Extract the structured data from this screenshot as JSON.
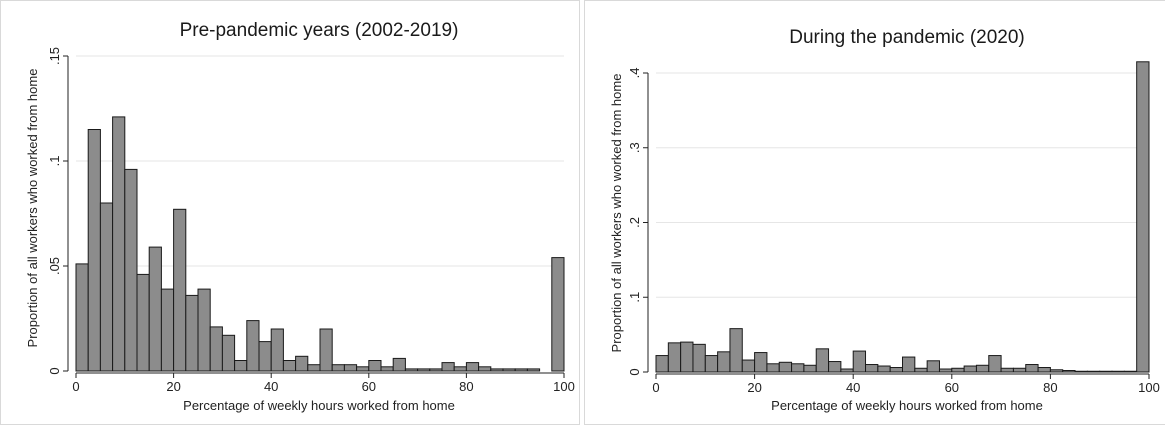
{
  "chart_data": [
    {
      "type": "bar",
      "title": "Pre-pandemic years (2002-2019)",
      "xlabel": "Percentage of weekly hours worked from home",
      "ylabel": "Proportion of all workers who worked from home",
      "xlim": [
        0,
        100
      ],
      "ylim": [
        0,
        0.15
      ],
      "xticks": [
        0,
        20,
        40,
        60,
        80,
        100
      ],
      "xtick_labels": [
        "0",
        "20",
        "40",
        "60",
        "80",
        "100"
      ],
      "yticks": [
        0,
        0.05,
        0.1,
        0.15
      ],
      "ytick_labels": [
        "0",
        ".05",
        ".1",
        ".15"
      ],
      "grid": true,
      "bin_width": 2.5,
      "bar_color": "#8c8c8c",
      "x": [
        2.5,
        5,
        7.5,
        10,
        12.5,
        15,
        17.5,
        20,
        22.5,
        25,
        27.5,
        30,
        32.5,
        35,
        37.5,
        40,
        42.5,
        45,
        47.5,
        50,
        52.5,
        55,
        57.5,
        60,
        62.5,
        65,
        67.5,
        70,
        72.5,
        75,
        77.5,
        80,
        82.5,
        85,
        87.5,
        90,
        92.5,
        95,
        97.5,
        100
      ],
      "values": [
        0.051,
        0.115,
        0.08,
        0.121,
        0.096,
        0.046,
        0.059,
        0.039,
        0.077,
        0.036,
        0.039,
        0.021,
        0.017,
        0.005,
        0.024,
        0.014,
        0.02,
        0.005,
        0.007,
        0.003,
        0.02,
        0.003,
        0.003,
        0.002,
        0.005,
        0.002,
        0.006,
        0.001,
        0.001,
        0.001,
        0.004,
        0.002,
        0.004,
        0.002,
        0.001,
        0.001,
        0.001,
        0.001,
        0,
        0.054
      ]
    },
    {
      "type": "bar",
      "title": "During the pandemic (2020)",
      "xlabel": "Percentage of weekly hours worked from home",
      "ylabel": "Proportion of all workers who worked from home",
      "xlim": [
        0,
        100
      ],
      "ylim": [
        0,
        0.4
      ],
      "xticks": [
        0,
        20,
        40,
        60,
        80,
        100
      ],
      "xtick_labels": [
        "0",
        "20",
        "40",
        "60",
        "80",
        "100"
      ],
      "yticks": [
        0,
        0.1,
        0.2,
        0.3,
        0.4
      ],
      "ytick_labels": [
        "0",
        ".1",
        ".2",
        ".3",
        ".4"
      ],
      "grid": true,
      "bin_width": 2.5,
      "bar_color": "#8c8c8c",
      "x": [
        2.5,
        5,
        7.5,
        10,
        12.5,
        15,
        17.5,
        20,
        22.5,
        25,
        27.5,
        30,
        32.5,
        35,
        37.5,
        40,
        42.5,
        45,
        47.5,
        50,
        52.5,
        55,
        57.5,
        60,
        62.5,
        65,
        67.5,
        70,
        72.5,
        75,
        77.5,
        80,
        82.5,
        85,
        87.5,
        90,
        92.5,
        95,
        97.5,
        100
      ],
      "values": [
        0.022,
        0.039,
        0.04,
        0.037,
        0.022,
        0.027,
        0.058,
        0.016,
        0.026,
        0.011,
        0.013,
        0.011,
        0.009,
        0.031,
        0.014,
        0.004,
        0.028,
        0.01,
        0.008,
        0.006,
        0.02,
        0.005,
        0.015,
        0.004,
        0.005,
        0.008,
        0.009,
        0.022,
        0.005,
        0.005,
        0.01,
        0.006,
        0.003,
        0.002,
        0.001,
        0.001,
        0.001,
        0.001,
        0.001,
        0.415
      ]
    }
  ]
}
